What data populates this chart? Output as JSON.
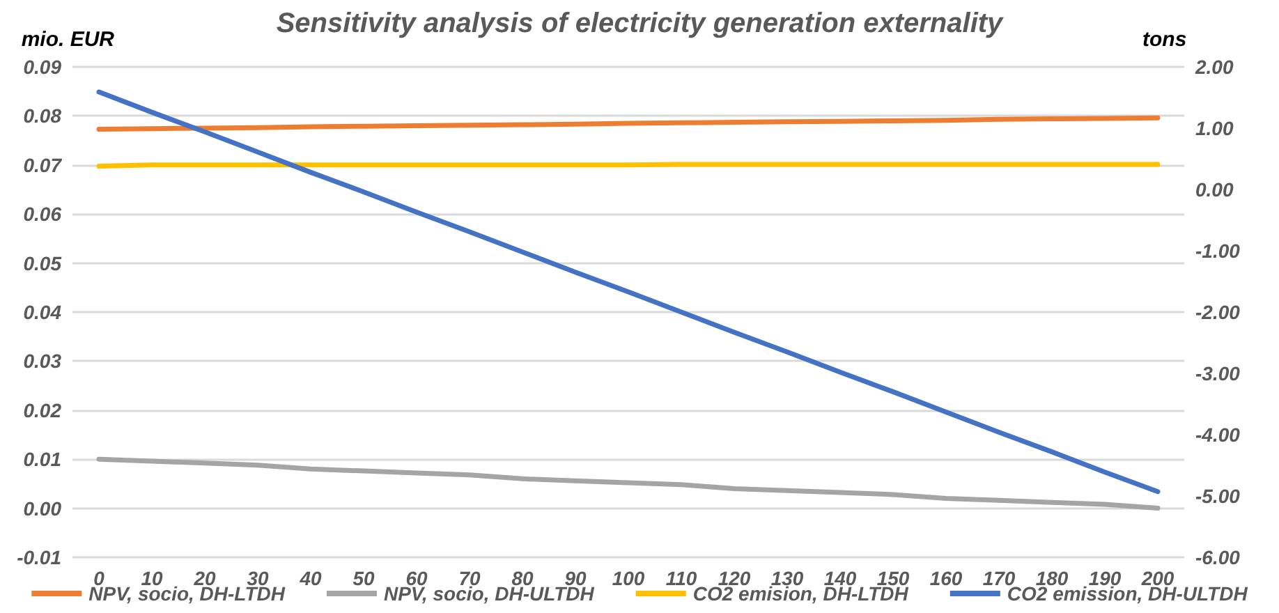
{
  "chart_data": {
    "type": "line",
    "title": "Sensitivity analysis of electricity generation externality",
    "ylabel": "mio. EUR",
    "y2label": "tons",
    "categories": [
      "0",
      "10",
      "20",
      "30",
      "40",
      "50",
      "60",
      "70",
      "80",
      "90",
      "100",
      "110",
      "120",
      "130",
      "140",
      "150",
      "160",
      "170",
      "180",
      "190",
      "200"
    ],
    "series": [
      {
        "name": "NPV, socio, DH-LTDH",
        "color": "#ed7d31",
        "values": [
          0.0773,
          0.0774,
          0.0775,
          0.0776,
          0.0778,
          0.0779,
          0.078,
          0.0781,
          0.0782,
          0.0783,
          0.0785,
          0.0786,
          0.0787,
          0.0788,
          0.0789,
          0.079,
          0.0791,
          0.0793,
          0.0794,
          0.0795,
          0.0796
        ]
      },
      {
        "name": "NPV, socio, DH-ULTDH",
        "color": "#a5a5a5",
        "values": [
          0.01,
          0.0096,
          0.0092,
          0.0088,
          0.008,
          0.0076,
          0.0072,
          0.0068,
          0.006,
          0.0056,
          0.0052,
          0.0048,
          0.004,
          0.0036,
          0.0032,
          0.0028,
          0.002,
          0.0016,
          0.0012,
          0.0008,
          0.0
        ]
      },
      {
        "name": "CO2 emision, DH-LTDH",
        "color": "#ffc000",
        "axis": "y2",
        "values": [
          0.38,
          0.4,
          0.4,
          0.4,
          0.4,
          0.4,
          0.4,
          0.4,
          0.4,
          0.4,
          0.4,
          0.41,
          0.41,
          0.41,
          0.41,
          0.41,
          0.41,
          0.41,
          0.41,
          0.41,
          0.41
        ]
      },
      {
        "name": "CO2 emission, DH-ULTDH",
        "color": "#4472c4",
        "axis": "y2",
        "values": [
          1.59,
          1.26,
          0.94,
          0.61,
          0.28,
          -0.04,
          -0.37,
          -0.69,
          -1.02,
          -1.35,
          -1.67,
          -2.0,
          -2.33,
          -2.65,
          -2.98,
          -3.3,
          -3.63,
          -3.96,
          -4.28,
          -4.61,
          -4.93
        ]
      }
    ],
    "ylim": [
      -0.01,
      0.09
    ],
    "yticks": [
      -0.01,
      {
        "value": 0,
        "label": "0.00"
      },
      0.01,
      0.02,
      0.03,
      0.04,
      0.05,
      0.06,
      0.07,
      0.08,
      0.09
    ],
    "y2lim": [
      -6,
      2
    ],
    "y2ticks": [
      {
        "value": -6,
        "label": "-6.00"
      },
      {
        "value": -5,
        "label": "-5.00"
      },
      {
        "value": -4,
        "label": "-4.00"
      },
      {
        "value": -3,
        "label": "-3.00"
      },
      {
        "value": -2,
        "label": "-2.00"
      },
      {
        "value": -1,
        "label": "-1.00"
      },
      {
        "value": 0,
        "label": "0.00"
      },
      {
        "value": 1,
        "label": "1.00"
      },
      {
        "value": 2,
        "label": "2.00"
      }
    ],
    "grid": "y",
    "legend": "bottom",
    "marker": "none",
    "line_style": "solid"
  }
}
